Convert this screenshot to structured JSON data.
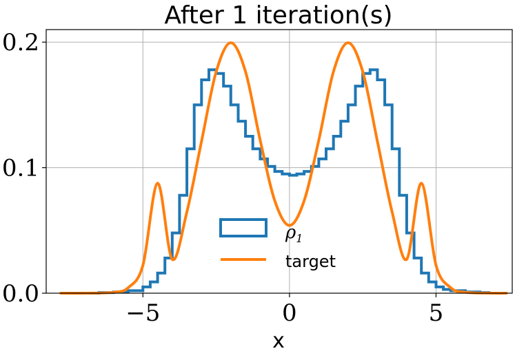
{
  "chart_data": {
    "type": "line",
    "title": "After 1 iteration(s)",
    "xlabel": "x",
    "ylabel": "",
    "xlim": [
      -8.3,
      7.6
    ],
    "ylim": [
      0,
      0.21
    ],
    "xticks": [
      -5,
      0,
      5
    ],
    "xtick_labels": [
      "−5",
      "0",
      "5"
    ],
    "yticks": [
      0.0,
      0.1,
      0.2
    ],
    "ytick_labels": [
      "0.0",
      "0.1",
      "0.2"
    ],
    "grid": true,
    "legend_position": "lower-center",
    "series": [
      {
        "name": "ρ",
        "name_subscript": "1",
        "kind": "step-histogram",
        "color": "#1f77b4",
        "x": [
          -7.8,
          -7.0,
          -6.5,
          -6.0,
          -5.5,
          -5.0,
          -4.75,
          -4.5,
          -4.25,
          -4.0,
          -3.75,
          -3.5,
          -3.25,
          -3.0,
          -2.75,
          -2.5,
          -2.25,
          -2.0,
          -1.75,
          -1.5,
          -1.25,
          -1.0,
          -0.75,
          -0.5,
          -0.25,
          0.0,
          0.25,
          0.5,
          0.75,
          1.0,
          1.25,
          1.5,
          1.75,
          2.0,
          2.25,
          2.5,
          2.75,
          3.0,
          3.25,
          3.5,
          3.75,
          4.0,
          4.25,
          4.5,
          4.75,
          5.0,
          5.25,
          5.5,
          6.0,
          6.5,
          6.8
        ],
        "y": [
          0.0,
          0.0,
          0.0005,
          0.001,
          0.002,
          0.005,
          0.009,
          0.016,
          0.028,
          0.048,
          0.078,
          0.115,
          0.15,
          0.17,
          0.178,
          0.175,
          0.165,
          0.15,
          0.137,
          0.125,
          0.115,
          0.107,
          0.101,
          0.097,
          0.095,
          0.094,
          0.095,
          0.097,
          0.101,
          0.107,
          0.115,
          0.125,
          0.137,
          0.15,
          0.165,
          0.175,
          0.178,
          0.17,
          0.15,
          0.115,
          0.078,
          0.048,
          0.028,
          0.016,
          0.009,
          0.005,
          0.003,
          0.002,
          0.001,
          0.0005,
          0.0
        ]
      },
      {
        "name": "target",
        "kind": "line",
        "color": "#ff7f0e",
        "x": [
          -7.8,
          -7.0,
          -6.0,
          -5.5,
          -5.0,
          -4.5,
          -4.0,
          -3.5,
          -3.0,
          -2.5,
          -2.0,
          -1.5,
          -1.0,
          -0.5,
          0.0,
          0.5,
          1.0,
          1.5,
          2.0,
          2.5,
          3.0,
          3.5,
          4.0,
          4.5,
          5.0,
          5.5,
          6.0,
          7.0,
          7.4
        ],
        "y": [
          0.0,
          0.0,
          0.0007,
          0.0044,
          0.0222,
          0.0876,
          0.027,
          0.0648,
          0.121,
          0.1765,
          0.1995,
          0.1765,
          0.1219,
          0.0736,
          0.054,
          0.0736,
          0.1219,
          0.1765,
          0.1995,
          0.1765,
          0.121,
          0.0648,
          0.027,
          0.0876,
          0.0222,
          0.0044,
          0.0007,
          0.0,
          0.0
        ]
      }
    ]
  }
}
